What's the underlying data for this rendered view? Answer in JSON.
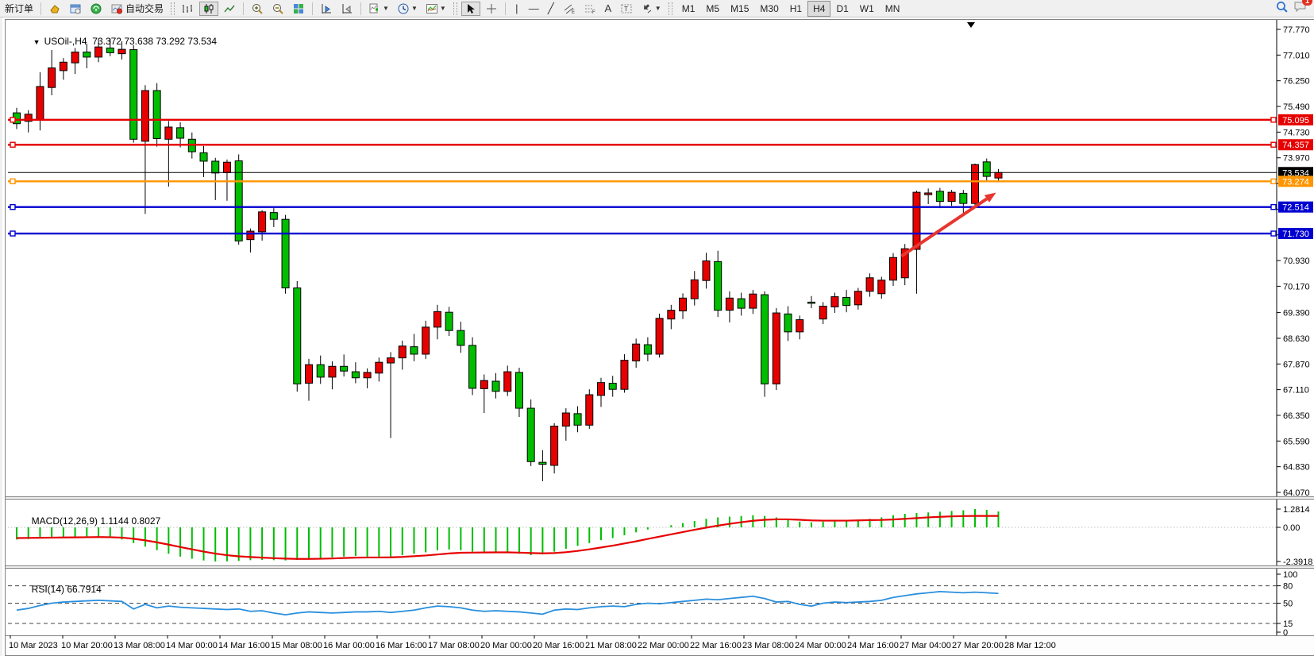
{
  "toolbar": {
    "new_order_label": "新订单",
    "auto_trading_label": "自动交易",
    "timeframes": [
      "M1",
      "M5",
      "M15",
      "M30",
      "H1",
      "H4",
      "D1",
      "W1",
      "MN"
    ],
    "active_timeframe": "H4",
    "notification_count": "1"
  },
  "window": {
    "symbol_period": "USOil-,H4",
    "ohlc_text": "73.372 73.638 73.292 73.534"
  },
  "chart_data": {
    "type": "candlestick",
    "symbol": "USOil",
    "timeframe": "H4",
    "current_bar": {
      "open": 73.372,
      "high": 73.638,
      "low": 73.292,
      "close": 73.534
    },
    "price_axis": {
      "ticks": [
        77.77,
        77.01,
        76.25,
        75.49,
        74.73,
        73.97,
        73.21,
        72.45,
        71.69,
        70.93,
        70.17,
        69.39,
        68.63,
        67.87,
        67.11,
        66.35,
        65.59,
        64.83,
        64.07
      ]
    },
    "time_axis": {
      "labels": [
        "10 Mar 2023",
        "10 Mar 20:00",
        "13 Mar 08:00",
        "14 Mar 00:00",
        "14 Mar 16:00",
        "15 Mar 08:00",
        "16 Mar 00:00",
        "16 Mar 16:00",
        "17 Mar 08:00",
        "20 Mar 00:00",
        "20 Mar 16:00",
        "21 Mar 08:00",
        "22 Mar 00:00",
        "22 Mar 16:00",
        "23 Mar 08:00",
        "24 Mar 00:00",
        "24 Mar 16:00",
        "27 Mar 04:00",
        "27 Mar 20:00",
        "28 Mar 12:00"
      ]
    },
    "candles": [
      [
        75.3,
        75.45,
        74.82,
        74.98
      ],
      [
        75.05,
        75.38,
        74.72,
        75.26
      ],
      [
        75.1,
        76.5,
        74.78,
        76.08
      ],
      [
        76.05,
        77.16,
        75.82,
        76.63
      ],
      [
        76.55,
        76.92,
        76.28,
        76.8
      ],
      [
        76.78,
        77.22,
        76.45,
        77.1
      ],
      [
        77.1,
        77.35,
        76.62,
        76.95
      ],
      [
        76.95,
        77.48,
        76.8,
        77.25
      ],
      [
        77.22,
        77.5,
        76.98,
        77.08
      ],
      [
        77.05,
        77.42,
        76.88,
        77.18
      ],
      [
        77.17,
        77.3,
        74.42,
        74.52
      ],
      [
        74.46,
        76.12,
        72.31,
        75.96
      ],
      [
        75.96,
        76.18,
        74.3,
        74.54
      ],
      [
        74.52,
        75.06,
        73.12,
        74.88
      ],
      [
        74.86,
        75.02,
        74.28,
        74.55
      ],
      [
        74.52,
        74.72,
        73.95,
        74.15
      ],
      [
        74.12,
        74.32,
        73.4,
        73.87
      ],
      [
        73.87,
        73.97,
        72.72,
        73.52
      ],
      [
        73.53,
        73.92,
        72.7,
        73.84
      ],
      [
        73.88,
        74.07,
        71.4,
        71.51
      ],
      [
        71.55,
        71.88,
        71.17,
        71.8
      ],
      [
        71.78,
        72.42,
        71.52,
        72.37
      ],
      [
        72.35,
        72.48,
        71.92,
        72.15
      ],
      [
        72.15,
        72.28,
        69.95,
        70.12
      ],
      [
        70.12,
        70.32,
        67.05,
        67.28
      ],
      [
        67.3,
        68.02,
        66.78,
        67.85
      ],
      [
        67.85,
        68.12,
        67.28,
        67.48
      ],
      [
        67.48,
        67.95,
        67.12,
        67.8
      ],
      [
        67.8,
        68.15,
        67.5,
        67.66
      ],
      [
        67.64,
        67.92,
        67.3,
        67.46
      ],
      [
        67.46,
        67.74,
        67.15,
        67.62
      ],
      [
        67.6,
        68.06,
        67.35,
        67.92
      ],
      [
        67.9,
        68.22,
        65.68,
        68.05
      ],
      [
        68.05,
        68.56,
        67.7,
        68.4
      ],
      [
        68.38,
        68.76,
        67.95,
        68.16
      ],
      [
        68.16,
        69.15,
        68.02,
        68.96
      ],
      [
        68.96,
        69.62,
        68.6,
        69.42
      ],
      [
        69.4,
        69.56,
        68.7,
        68.86
      ],
      [
        68.86,
        69.12,
        68.2,
        68.42
      ],
      [
        68.42,
        68.66,
        66.95,
        67.15
      ],
      [
        67.14,
        67.56,
        66.42,
        67.38
      ],
      [
        67.36,
        67.6,
        66.85,
        67.06
      ],
      [
        67.06,
        67.82,
        66.92,
        67.64
      ],
      [
        67.62,
        67.76,
        66.3,
        66.56
      ],
      [
        66.56,
        66.82,
        64.85,
        64.98
      ],
      [
        64.96,
        65.32,
        64.4,
        64.9
      ],
      [
        64.87,
        66.12,
        64.63,
        66.03
      ],
      [
        66.03,
        66.56,
        65.6,
        66.42
      ],
      [
        66.4,
        66.62,
        65.85,
        66.06
      ],
      [
        66.06,
        67.12,
        65.95,
        66.96
      ],
      [
        66.94,
        67.46,
        66.6,
        67.32
      ],
      [
        67.3,
        67.52,
        66.9,
        67.12
      ],
      [
        67.12,
        68.16,
        67.02,
        67.98
      ],
      [
        67.96,
        68.62,
        67.76,
        68.46
      ],
      [
        68.44,
        68.66,
        67.95,
        68.16
      ],
      [
        68.16,
        69.36,
        68.06,
        69.22
      ],
      [
        69.2,
        69.62,
        68.9,
        69.46
      ],
      [
        69.44,
        69.96,
        69.2,
        69.82
      ],
      [
        69.8,
        70.62,
        69.6,
        70.36
      ],
      [
        70.34,
        71.16,
        70.1,
        70.92
      ],
      [
        70.9,
        71.22,
        69.26,
        69.46
      ],
      [
        69.46,
        70.02,
        69.1,
        69.82
      ],
      [
        69.8,
        69.98,
        69.3,
        69.52
      ],
      [
        69.52,
        70.06,
        69.35,
        69.94
      ],
      [
        69.92,
        70.02,
        66.9,
        67.28
      ],
      [
        67.28,
        69.52,
        67.1,
        69.38
      ],
      [
        69.35,
        69.58,
        68.55,
        68.82
      ],
      [
        68.82,
        69.3,
        68.6,
        69.18
      ],
      [
        69.7,
        69.88,
        69.52,
        69.69
      ],
      [
        69.2,
        69.7,
        69.05,
        69.58
      ],
      [
        69.56,
        69.98,
        69.38,
        69.86
      ],
      [
        69.84,
        70.06,
        69.4,
        69.6
      ],
      [
        69.62,
        70.12,
        69.48,
        70.02
      ],
      [
        70.02,
        70.55,
        69.86,
        70.42
      ],
      [
        69.95,
        70.45,
        69.8,
        70.35
      ],
      [
        70.35,
        71.15,
        70.18,
        71.02
      ],
      [
        70.42,
        71.42,
        70.2,
        71.28
      ],
      [
        71.26,
        73.0,
        69.95,
        72.95
      ],
      [
        72.88,
        73.06,
        72.6,
        72.93
      ],
      [
        72.98,
        73.08,
        72.48,
        72.68
      ],
      [
        72.68,
        73.02,
        72.55,
        72.95
      ],
      [
        72.92,
        73.02,
        72.28,
        72.62
      ],
      [
        72.62,
        73.8,
        72.5,
        73.77
      ],
      [
        73.85,
        73.95,
        73.3,
        73.42
      ],
      [
        73.372,
        73.638,
        73.292,
        73.534
      ]
    ],
    "levels": [
      {
        "price": 75.095,
        "badge": "75.095",
        "color": "#e60000",
        "kind": "resistance"
      },
      {
        "price": 74.357,
        "badge": "74.357",
        "color": "#e60000",
        "kind": "resistance"
      },
      {
        "price": 73.534,
        "badge": "73.534",
        "color": "#000000",
        "kind": "current-price"
      },
      {
        "price": 73.274,
        "badge": "73.274",
        "color": "#ff9500",
        "kind": "pivot"
      },
      {
        "price": 72.514,
        "badge": "72.514",
        "color": "#0000d0",
        "kind": "support"
      },
      {
        "price": 71.73,
        "badge": "71.730",
        "color": "#0000d0",
        "kind": "support"
      }
    ],
    "annotations": {
      "trend_arrow": {
        "bar1": 75.7,
        "price1": 71.06,
        "bar2": 83.8,
        "price2": 72.94,
        "color": "#e8352e"
      }
    },
    "macd": {
      "label": "MACD(12,26,9)",
      "values_text": "1.1144 0.8027",
      "axis_labels": [
        "1.2814",
        "0.00",
        "-2.3918"
      ],
      "axis_values": [
        1.2814,
        0.0,
        -2.3918
      ],
      "histogram": [
        -0.85,
        -0.82,
        -0.78,
        -0.72,
        -0.68,
        -0.66,
        -0.64,
        -0.66,
        -0.72,
        -0.85,
        -1.1,
        -1.35,
        -1.6,
        -1.85,
        -2.05,
        -2.2,
        -2.32,
        -2.3918,
        -2.38,
        -2.35,
        -2.3,
        -2.28,
        -2.3,
        -2.32,
        -2.28,
        -2.22,
        -2.15,
        -2.1,
        -2.05,
        -2.0,
        -2.05,
        -2.1,
        -2.05,
        -1.95,
        -1.85,
        -1.75,
        -1.6,
        -1.55,
        -1.6,
        -1.7,
        -1.75,
        -1.7,
        -1.75,
        -1.85,
        -1.95,
        -1.9,
        -1.7,
        -1.5,
        -1.3,
        -1.1,
        -0.9,
        -0.75,
        -0.55,
        -0.35,
        -0.15,
        0.0,
        0.15,
        0.3,
        0.45,
        0.6,
        0.7,
        0.75,
        0.8,
        0.85,
        0.8,
        0.7,
        0.55,
        0.4,
        0.35,
        0.4,
        0.45,
        0.5,
        0.55,
        0.6,
        0.7,
        0.85,
        0.95,
        1.0,
        1.05,
        1.1,
        1.15,
        1.2,
        1.2814,
        1.22,
        1.1144
      ],
      "signal": [
        -0.75,
        -0.74,
        -0.73,
        -0.72,
        -0.71,
        -0.7,
        -0.69,
        -0.68,
        -0.69,
        -0.72,
        -0.8,
        -0.91,
        -1.05,
        -1.21,
        -1.38,
        -1.54,
        -1.7,
        -1.84,
        -1.95,
        -2.03,
        -2.08,
        -2.12,
        -2.16,
        -2.19,
        -2.21,
        -2.21,
        -2.2,
        -2.18,
        -2.15,
        -2.12,
        -2.11,
        -2.11,
        -2.1,
        -2.07,
        -2.02,
        -1.97,
        -1.9,
        -1.83,
        -1.78,
        -1.77,
        -1.76,
        -1.75,
        -1.75,
        -1.77,
        -1.8,
        -1.82,
        -1.8,
        -1.74,
        -1.65,
        -1.54,
        -1.41,
        -1.28,
        -1.13,
        -0.98,
        -0.81,
        -0.65,
        -0.49,
        -0.33,
        -0.17,
        -0.02,
        0.12,
        0.25,
        0.36,
        0.46,
        0.53,
        0.56,
        0.56,
        0.53,
        0.49,
        0.47,
        0.47,
        0.47,
        0.49,
        0.51,
        0.52,
        0.55,
        0.6,
        0.65,
        0.7,
        0.74,
        0.77,
        0.79,
        0.8,
        0.8,
        0.8027
      ]
    },
    "rsi": {
      "label": "RSI(14)",
      "value_text": "66.7914",
      "axis_labels": [
        "100",
        "80",
        "50",
        "15",
        "0"
      ],
      "levels": [
        80,
        50,
        15
      ],
      "range": [
        0,
        100
      ],
      "values": [
        38,
        41,
        46,
        50,
        52,
        53,
        54,
        55,
        54,
        53,
        40,
        48,
        42,
        45,
        43,
        42,
        41,
        40,
        39,
        40,
        36,
        37,
        33,
        30,
        33,
        35,
        34,
        33,
        34,
        35,
        35,
        36,
        34,
        36,
        38,
        42,
        45,
        44,
        42,
        38,
        36,
        37,
        36,
        35,
        33,
        31,
        38,
        40,
        39,
        42,
        44,
        45,
        44,
        48,
        50,
        49,
        51,
        53,
        55,
        57,
        56,
        58,
        60,
        62,
        58,
        52,
        53,
        48,
        45,
        50,
        52,
        51,
        52,
        53,
        55,
        60,
        63,
        66,
        68,
        70,
        69,
        68,
        69,
        68,
        66.79
      ]
    },
    "colors": {
      "bull": "#e60000",
      "bear": "#00bd00",
      "outline": "#000000",
      "macd_hist": "#00bd00",
      "macd_signal": "#e60000",
      "rsi_line": "#2a8fdd",
      "current_price": "#000000"
    }
  }
}
